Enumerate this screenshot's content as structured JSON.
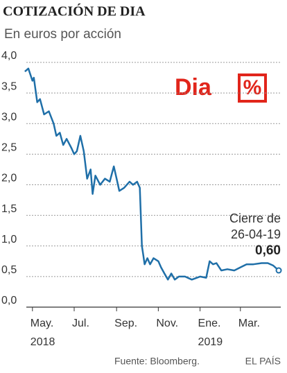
{
  "chart_data": {
    "type": "line",
    "title": "COTIZACIÓN DE DIA",
    "subtitle": "En euros por acción",
    "logo": {
      "text": "Dia",
      "symbol": "%"
    },
    "source": "Fuente: Bloomberg.",
    "credit": "EL PAÍS",
    "x": [
      "2018-04-20",
      "2018-04-25",
      "2018-05-01",
      "2018-05-03",
      "2018-05-08",
      "2018-05-12",
      "2018-05-18",
      "2018-05-25",
      "2018-06-01",
      "2018-06-05",
      "2018-06-10",
      "2018-06-15",
      "2018-06-20",
      "2018-06-27",
      "2018-07-01",
      "2018-07-05",
      "2018-07-10",
      "2018-07-15",
      "2018-07-20",
      "2018-07-25",
      "2018-07-28",
      "2018-08-01",
      "2018-08-08",
      "2018-08-15",
      "2018-08-22",
      "2018-08-28",
      "2018-09-01",
      "2018-09-05",
      "2018-09-12",
      "2018-09-20",
      "2018-09-25",
      "2018-10-01",
      "2018-10-05",
      "2018-10-08",
      "2018-10-10",
      "2018-10-12",
      "2018-10-16",
      "2018-10-20",
      "2018-10-25",
      "2018-11-01",
      "2018-11-05",
      "2018-11-10",
      "2018-11-15",
      "2018-11-20",
      "2018-11-25",
      "2018-12-01",
      "2018-12-10",
      "2018-12-20",
      "2019-01-01",
      "2019-01-10",
      "2019-01-15",
      "2019-01-20",
      "2019-01-25",
      "2019-02-01",
      "2019-02-10",
      "2019-02-20",
      "2019-03-01",
      "2019-03-10",
      "2019-03-20",
      "2019-04-01",
      "2019-04-10",
      "2019-04-18",
      "2019-04-26"
    ],
    "series": [
      {
        "name": "Dia",
        "color": "#1f6fa8",
        "values": [
          3.85,
          3.9,
          3.7,
          3.75,
          3.35,
          3.4,
          3.15,
          3.2,
          3.0,
          2.8,
          2.85,
          2.65,
          2.75,
          2.6,
          2.5,
          2.55,
          2.8,
          2.55,
          2.1,
          2.25,
          1.85,
          2.15,
          2.0,
          2.1,
          2.05,
          2.3,
          2.1,
          1.9,
          1.95,
          2.05,
          2.0,
          2.05,
          1.95,
          1.0,
          0.85,
          0.7,
          0.8,
          0.7,
          0.8,
          0.75,
          0.65,
          0.55,
          0.45,
          0.55,
          0.45,
          0.5,
          0.5,
          0.45,
          0.5,
          0.48,
          0.75,
          0.7,
          0.72,
          0.6,
          0.62,
          0.6,
          0.65,
          0.7,
          0.7,
          0.72,
          0.72,
          0.68,
          0.6
        ],
        "value_labels": [
          null,
          null,
          null,
          null,
          null,
          null,
          null,
          null,
          null,
          null,
          null,
          null,
          null,
          null,
          null,
          null,
          null,
          null,
          null,
          null,
          null,
          null,
          null,
          null,
          null,
          null,
          null,
          null,
          null,
          null,
          null,
          null,
          null,
          null,
          null,
          null,
          null,
          null,
          null,
          null,
          null,
          null,
          null,
          null,
          null,
          null,
          null,
          null,
          null,
          null,
          null,
          null,
          null,
          null,
          null,
          null,
          null,
          null,
          null,
          null,
          null,
          null,
          "0,60"
        ]
      }
    ],
    "annotation": [
      "Cierre de",
      "26-04-19"
    ],
    "xlim": [
      "2018-04-16",
      "2019-04-29"
    ],
    "xticks": [
      {
        "value": "2018-05-01",
        "label": "May."
      },
      {
        "value": "2018-07-01",
        "label": "Jul."
      },
      {
        "value": "2018-09-01",
        "label": "Sep."
      },
      {
        "value": "2018-11-01",
        "label": "Nov."
      },
      {
        "value": "2019-01-01",
        "label": "Ene."
      },
      {
        "value": "2019-03-01",
        "label": "Mar."
      }
    ],
    "year_ticks": [
      {
        "value": "2018-05-01",
        "label": "2018"
      },
      {
        "value": "2019-01-01",
        "label": "2019"
      }
    ],
    "ylim": [
      0,
      4
    ],
    "yticks": [
      {
        "value": 0,
        "label": "0,0"
      },
      {
        "value": 0.5,
        "label": "0,5"
      },
      {
        "value": 1,
        "label": "1,0"
      },
      {
        "value": 1.5,
        "label": "1,5"
      },
      {
        "value": 2,
        "label": "2,0"
      },
      {
        "value": 2.5,
        "label": "2,5"
      },
      {
        "value": 3,
        "label": "3,0"
      },
      {
        "value": 3.5,
        "label": "3,5"
      },
      {
        "value": 4,
        "label": "4,0"
      }
    ],
    "grid": true
  }
}
